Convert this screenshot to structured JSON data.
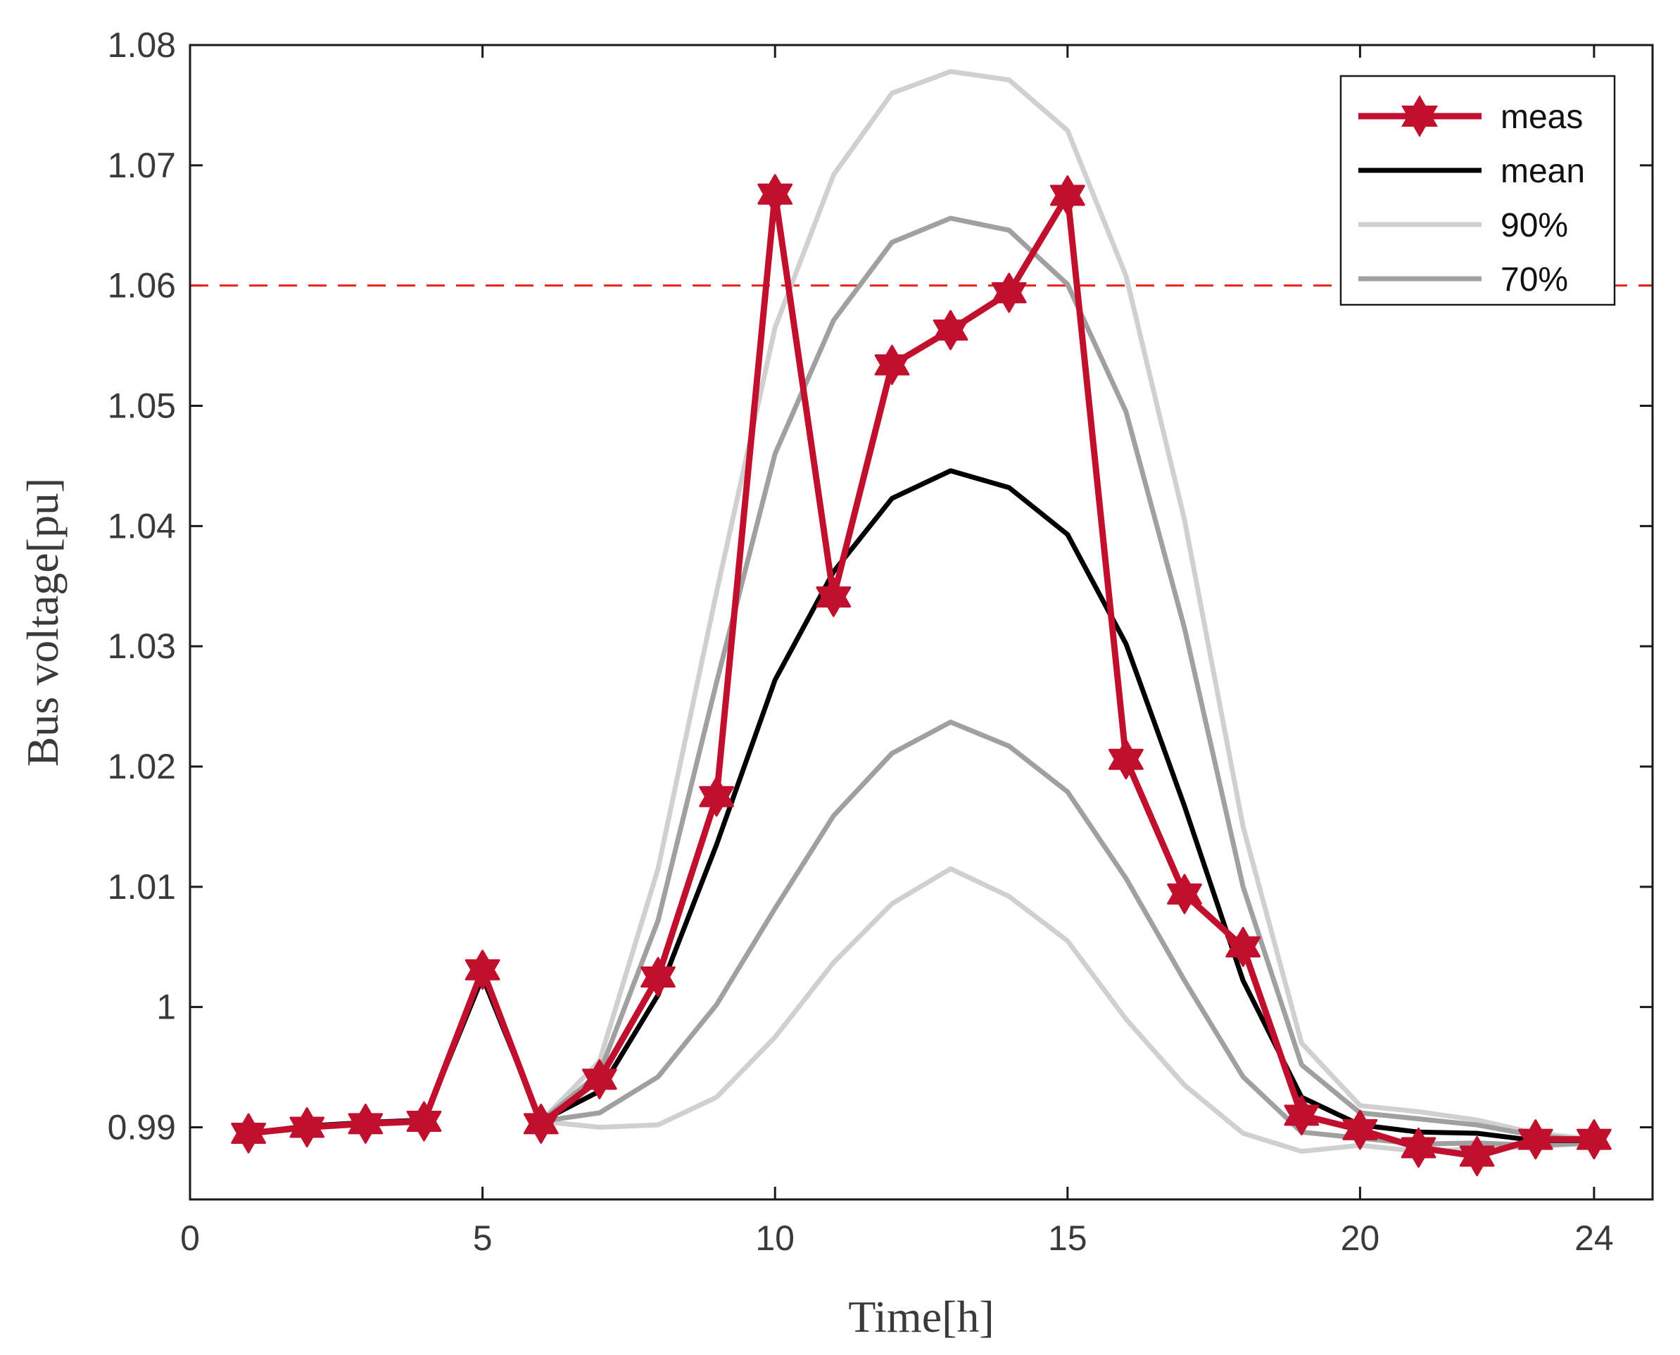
{
  "chart_data": {
    "type": "line",
    "title": "",
    "xlabel": "Time[h]",
    "ylabel": "Bus voltage[pu]",
    "xlim": [
      0,
      25
    ],
    "ylim": [
      0.984,
      1.08
    ],
    "xticks": [
      0,
      5,
      10,
      15,
      20,
      24
    ],
    "xtick_labels": [
      "0",
      "5",
      "10",
      "15",
      "20",
      "24"
    ],
    "yticks": [
      0.99,
      1.0,
      1.01,
      1.02,
      1.03,
      1.04,
      1.05,
      1.06,
      1.07,
      1.08
    ],
    "ytick_labels": [
      "0.99",
      "1",
      "1.01",
      "1.02",
      "1.03",
      "1.04",
      "1.05",
      "1.06",
      "1.07",
      "1.08"
    ],
    "grid": false,
    "legend_position": "top-right",
    "x": [
      1,
      2,
      3,
      4,
      5,
      6,
      7,
      8,
      9,
      10,
      11,
      12,
      13,
      14,
      15,
      16,
      17,
      18,
      19,
      20,
      21,
      22,
      23,
      24
    ],
    "reference_line": {
      "y": 1.06,
      "color": "#e8241b",
      "style": "dashed"
    },
    "series": [
      {
        "name": "90%",
        "legend": true,
        "color": "#d0d0d0",
        "values": [
          0.9895,
          0.9901,
          0.9904,
          0.9906,
          1.0025,
          0.9905,
          0.9955,
          1.0115,
          1.0345,
          1.0565,
          1.0692,
          1.076,
          1.0778,
          1.0771,
          1.0729,
          1.0608,
          1.0405,
          1.015,
          0.997,
          0.9918,
          0.9913,
          0.9906,
          0.9895,
          0.989
        ]
      },
      {
        "name": "90% lower",
        "legend": false,
        "color": "#d0d0d0",
        "values": [
          0.9895,
          0.9901,
          0.9904,
          0.9906,
          1.0025,
          0.9905,
          0.99,
          0.9902,
          0.9925,
          0.9975,
          1.0037,
          1.0086,
          1.0115,
          1.0092,
          1.0055,
          0.999,
          0.9935,
          0.9895,
          0.988,
          0.9885,
          0.988,
          0.9882,
          0.9884,
          0.9887
        ]
      },
      {
        "name": "70%",
        "legend": true,
        "color": "#a0a0a0",
        "values": [
          0.9895,
          0.9901,
          0.9904,
          0.9906,
          1.0025,
          0.9905,
          0.9945,
          1.0072,
          1.027,
          1.046,
          1.0571,
          1.0636,
          1.0656,
          1.0646,
          1.0601,
          1.0495,
          1.0315,
          1.01,
          0.9952,
          0.9912,
          0.9907,
          0.9902,
          0.9893,
          0.9889
        ]
      },
      {
        "name": "70% lower",
        "legend": false,
        "color": "#a0a0a0",
        "values": [
          0.9895,
          0.9901,
          0.9904,
          0.9906,
          1.0025,
          0.9905,
          0.9912,
          0.9942,
          1.0002,
          1.0082,
          1.0159,
          1.0211,
          1.0237,
          1.0217,
          1.0179,
          1.0107,
          1.0022,
          0.9942,
          0.9896,
          0.9891,
          0.9886,
          0.9887,
          0.9885,
          0.9887
        ]
      },
      {
        "name": "mean",
        "legend": true,
        "color": "#000000",
        "values": [
          0.9895,
          0.9901,
          0.9904,
          0.9906,
          1.0025,
          0.9905,
          0.993,
          1.001,
          1.0135,
          1.0272,
          1.0362,
          1.0423,
          1.0446,
          1.0432,
          1.0393,
          1.0302,
          1.0167,
          1.0022,
          0.9925,
          0.9902,
          0.9896,
          0.9895,
          0.9889,
          0.9889
        ]
      },
      {
        "name": "meas",
        "legend": true,
        "color": "#c0102e",
        "marker": "hexagram",
        "values": [
          0.9895,
          0.99,
          0.9903,
          0.9905,
          1.0031,
          0.9903,
          0.994,
          1.0025,
          1.0175,
          1.0676,
          1.0341,
          1.0534,
          1.0563,
          1.0594,
          1.0675,
          1.0206,
          1.0094,
          1.005,
          0.991,
          0.9898,
          0.9883,
          0.9876,
          0.989,
          0.989
        ]
      }
    ]
  }
}
